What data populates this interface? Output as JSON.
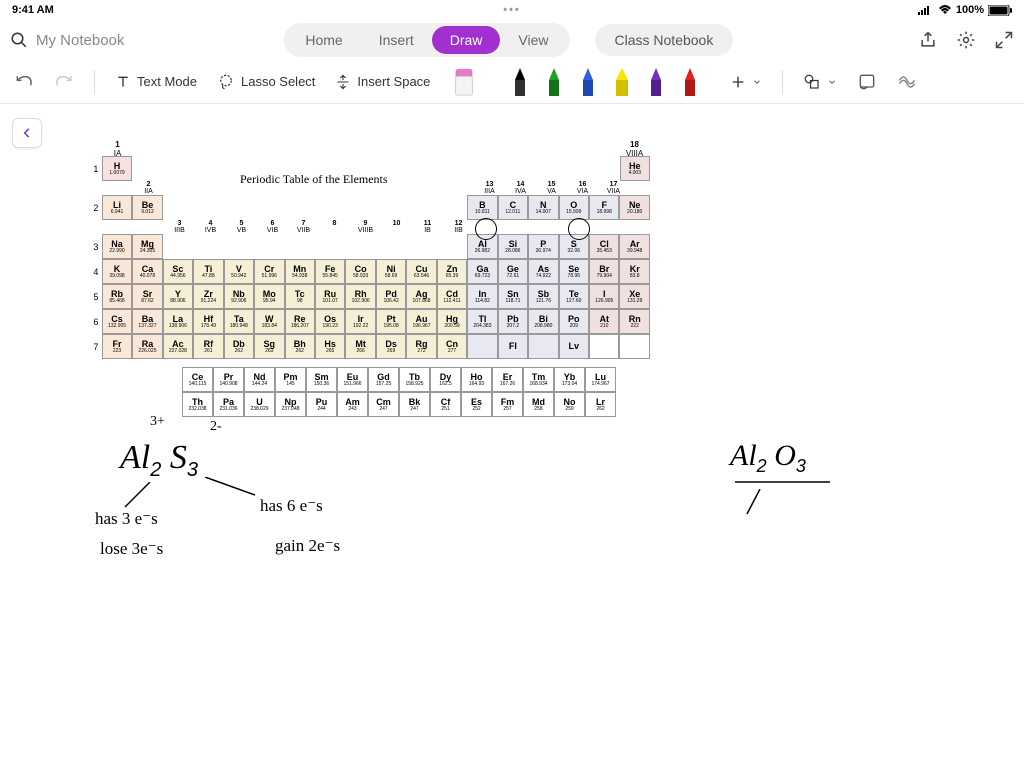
{
  "status": {
    "time": "9:41 AM",
    "battery": "100%",
    "dots": "•••"
  },
  "top": {
    "search_placeholder": "My Notebook",
    "tabs": [
      "Home",
      "Insert",
      "Draw",
      "View"
    ],
    "active_tab": 2,
    "class_notebook": "Class Notebook"
  },
  "toolbar": {
    "text_mode": "Text Mode",
    "lasso": "Lasso Select",
    "insert_space": "Insert Space",
    "pen_colors": [
      "#d060d0",
      "#000000",
      "#20a020",
      "#3060e0",
      "#f0e000",
      "#7030c0",
      "#e02020"
    ]
  },
  "periodic_table": {
    "title": "Periodic Table of the Elements",
    "group_top": [
      "1",
      "IA"
    ],
    "group_18": [
      "18",
      "VIIIA"
    ],
    "groups_13_17_top": [
      "13",
      "14",
      "15",
      "16",
      "17"
    ],
    "groups_13_17_rom": [
      "IIIA",
      "IVA",
      "VA",
      "VIA",
      "VIIA"
    ],
    "group_2": [
      "2",
      "IIA"
    ],
    "groups_3_12": [
      "3",
      "4",
      "5",
      "6",
      "7",
      "8",
      "9",
      "10",
      "11",
      "12"
    ],
    "groups_3_12_rom": [
      "IIIB",
      "IVB",
      "VB",
      "VIB",
      "VIIB",
      "",
      "VIIIB",
      "",
      "IB",
      "IIB"
    ],
    "row1": [
      [
        "H",
        "1.0079",
        "h"
      ],
      [
        "He",
        "4.003",
        "noble"
      ]
    ],
    "row2": [
      [
        "Li",
        "6.941",
        "alk"
      ],
      [
        "Be",
        "9.012",
        "alk"
      ],
      [
        "B",
        "10.811",
        "post"
      ],
      [
        "C",
        "12.011",
        "post"
      ],
      [
        "N",
        "14.007",
        "post"
      ],
      [
        "O",
        "15.999",
        "post"
      ],
      [
        "F",
        "18.998",
        "post"
      ],
      [
        "Ne",
        "20.180",
        "noble"
      ]
    ],
    "row3": [
      [
        "Na",
        "22.990",
        "alk"
      ],
      [
        "Mg",
        "24.305",
        "alk"
      ],
      [
        "Al",
        "26.982",
        "post"
      ],
      [
        "Si",
        "28.086",
        "post"
      ],
      [
        "P",
        "30.974",
        "post"
      ],
      [
        "S",
        "32.06",
        "post"
      ],
      [
        "Cl",
        "35.453",
        "noble"
      ],
      [
        "Ar",
        "39.948",
        "noble"
      ]
    ],
    "row4": [
      [
        "K",
        "39.098",
        "alk"
      ],
      [
        "Ca",
        "40.078",
        "alk"
      ],
      [
        "Sc",
        "44.956",
        "trans"
      ],
      [
        "Ti",
        "47.88",
        "trans"
      ],
      [
        "V",
        "50.942",
        "trans"
      ],
      [
        "Cr",
        "51.996",
        "trans"
      ],
      [
        "Mn",
        "54.938",
        "trans"
      ],
      [
        "Fe",
        "55.845",
        "trans"
      ],
      [
        "Co",
        "58.933",
        "trans"
      ],
      [
        "Ni",
        "58.69",
        "trans"
      ],
      [
        "Cu",
        "63.546",
        "trans"
      ],
      [
        "Zn",
        "65.39",
        "trans"
      ],
      [
        "Ga",
        "69.723",
        "post"
      ],
      [
        "Ge",
        "72.61",
        "post"
      ],
      [
        "As",
        "74.922",
        "post"
      ],
      [
        "Se",
        "78.96",
        "post"
      ],
      [
        "Br",
        "79.904",
        "noble"
      ],
      [
        "Kr",
        "83.8",
        "noble"
      ]
    ],
    "row5": [
      [
        "Rb",
        "85.468",
        "alk"
      ],
      [
        "Sr",
        "87.62",
        "alk"
      ],
      [
        "Y",
        "88.906",
        "trans"
      ],
      [
        "Zr",
        "91.224",
        "trans"
      ],
      [
        "Nb",
        "92.906",
        "trans"
      ],
      [
        "Mo",
        "95.94",
        "trans"
      ],
      [
        "Tc",
        "98",
        "trans"
      ],
      [
        "Ru",
        "101.07",
        "trans"
      ],
      [
        "Rh",
        "102.906",
        "trans"
      ],
      [
        "Pd",
        "106.42",
        "trans"
      ],
      [
        "Ag",
        "107.868",
        "trans"
      ],
      [
        "Cd",
        "112.411",
        "trans"
      ],
      [
        "In",
        "114.82",
        "post"
      ],
      [
        "Sn",
        "118.71",
        "post"
      ],
      [
        "Sb",
        "121.76",
        "post"
      ],
      [
        "Te",
        "127.60",
        "post"
      ],
      [
        "I",
        "126.905",
        "noble"
      ],
      [
        "Xe",
        "131.29",
        "noble"
      ]
    ],
    "row6": [
      [
        "Cs",
        "132.905",
        "alk"
      ],
      [
        "Ba",
        "137.327",
        "alk"
      ],
      [
        "La",
        "138.906",
        "trans"
      ],
      [
        "Hf",
        "178.49",
        "trans"
      ],
      [
        "Ta",
        "180.948",
        "trans"
      ],
      [
        "W",
        "183.84",
        "trans"
      ],
      [
        "Re",
        "186.207",
        "trans"
      ],
      [
        "Os",
        "190.23",
        "trans"
      ],
      [
        "Ir",
        "192.22",
        "trans"
      ],
      [
        "Pt",
        "195.08",
        "trans"
      ],
      [
        "Au",
        "196.967",
        "trans"
      ],
      [
        "Hg",
        "200.59",
        "trans"
      ],
      [
        "Tl",
        "204.383",
        "post"
      ],
      [
        "Pb",
        "207.2",
        "post"
      ],
      [
        "Bi",
        "208.980",
        "post"
      ],
      [
        "Po",
        "209",
        "post"
      ],
      [
        "At",
        "210",
        "noble"
      ],
      [
        "Rn",
        "222",
        "noble"
      ]
    ],
    "row7": [
      [
        "Fr",
        "223",
        "alk"
      ],
      [
        "Ra",
        "226.025",
        "alk"
      ],
      [
        "Ac",
        "227.028",
        "trans"
      ],
      [
        "Rf",
        "261",
        "trans"
      ],
      [
        "Db",
        "262",
        "trans"
      ],
      [
        "Sg",
        "263",
        "trans"
      ],
      [
        "Bh",
        "262",
        "trans"
      ],
      [
        "Hs",
        "265",
        "trans"
      ],
      [
        "Mt",
        "266",
        "trans"
      ],
      [
        "Ds",
        "269",
        "trans"
      ],
      [
        "Rg",
        "272",
        "trans"
      ],
      [
        "Cn",
        "277",
        "trans"
      ],
      [
        "",
        "",
        "post"
      ],
      [
        "Fl",
        "",
        "post"
      ],
      [
        "",
        "",
        "post"
      ],
      [
        "Lv",
        "",
        "post"
      ],
      [
        "",
        "",
        ""
      ],
      [
        "",
        "",
        ""
      ]
    ],
    "lanth": [
      [
        "Ce",
        "140.115"
      ],
      [
        "Pr",
        "140.908"
      ],
      [
        "Nd",
        "144.24"
      ],
      [
        "Pm",
        "145"
      ],
      [
        "Sm",
        "150.36"
      ],
      [
        "Eu",
        "151.966"
      ],
      [
        "Gd",
        "157.25"
      ],
      [
        "Tb",
        "158.925"
      ],
      [
        "Dy",
        "162.5"
      ],
      [
        "Ho",
        "164.93"
      ],
      [
        "Er",
        "167.26"
      ],
      [
        "Tm",
        "168.934"
      ],
      [
        "Yb",
        "173.04"
      ],
      [
        "Lu",
        "174.967"
      ]
    ],
    "actin": [
      [
        "Th",
        "232.038"
      ],
      [
        "Pa",
        "231.036"
      ],
      [
        "U",
        "238.029"
      ],
      [
        "Np",
        "237.048"
      ],
      [
        "Pu",
        "244"
      ],
      [
        "Am",
        "243"
      ],
      [
        "Cm",
        "247"
      ],
      [
        "Bk",
        "247"
      ],
      [
        "Cf",
        "251"
      ],
      [
        "Es",
        "252"
      ],
      [
        "Fm",
        "257"
      ],
      [
        "Md",
        "258"
      ],
      [
        "No",
        "259"
      ],
      [
        "Lr",
        "262"
      ]
    ]
  },
  "handwriting": {
    "al_charge": "3+",
    "s_charge": "2-",
    "formula1": "Al₂ S₃",
    "formula1_sub1": "2",
    "formula1_sub2": "3",
    "has3e": "has 3 e⁻s",
    "lose3e": "lose 3e⁻s",
    "has6e": "has 6 e⁻s",
    "gain2e": "gain 2e⁻s",
    "formula2": "Al₂ O₃"
  }
}
